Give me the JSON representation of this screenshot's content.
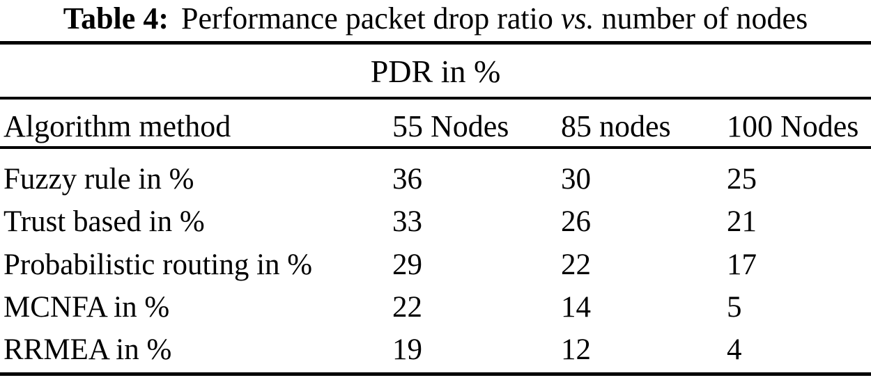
{
  "page": {
    "background_color": "#ffffff",
    "text_color": "#000000",
    "rule_color": "#000000"
  },
  "caption": {
    "label": "Table 4:",
    "text_before_italic": "Performance packet drop ratio",
    "italic_text": "vs.",
    "text_after_italic": "number of nodes"
  },
  "table": {
    "group_header": "PDR in %",
    "columns": [
      "Algorithm method",
      "55 Nodes",
      "85 nodes",
      "100 Nodes"
    ],
    "rows": [
      {
        "label": "Fuzzy rule in %",
        "values": [
          "36",
          "30",
          "25"
        ]
      },
      {
        "label": "Trust based in %",
        "values": [
          "33",
          "26",
          "21"
        ]
      },
      {
        "label": "Probabilistic routing in %",
        "values": [
          "29",
          "22",
          "17"
        ]
      },
      {
        "label": "MCNFA in %",
        "values": [
          "22",
          "14",
          "5"
        ]
      },
      {
        "label": "RRMEA in %",
        "values": [
          "19",
          "12",
          "4"
        ]
      }
    ]
  }
}
